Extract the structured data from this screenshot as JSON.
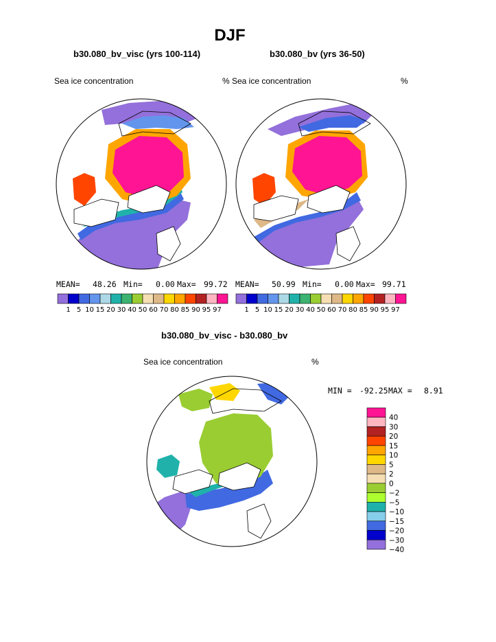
{
  "page": {
    "title": "DJF",
    "left_case": "b30.080_bv_visc (yrs 100-114)",
    "right_case": "b30.080_bv (yrs 36-50)",
    "diff_case": "b30.080_bv_visc - b30.080_bv"
  },
  "panels": [
    {
      "name": "b30.080_bv_visc (yrs 100-114)",
      "variable": "Sea ice concentration",
      "units": "%",
      "mean_label": "MEAN=",
      "mean": "48.26",
      "min_label": "Min=",
      "min": "0.00",
      "max_label": "Max=",
      "max": "99.72"
    },
    {
      "name": "b30.080_bv (yrs 36-50)",
      "variable": "Sea ice concentration",
      "units": "%",
      "mean_label": "MEAN=",
      "mean": "50.99",
      "min_label": "Min=",
      "min": "0.00",
      "max_label": "Max=",
      "max": "99.71"
    },
    {
      "name": "b30.080_bv_visc - b30.080_bv",
      "variable": "Sea ice concentration",
      "units": "%",
      "min_label": "MIN =",
      "min": "-92.25",
      "max_label": "MAX =",
      "max": "8.91"
    }
  ],
  "chart_data": [
    {
      "type": "heatmap",
      "title": "b30.080_bv_visc (yrs 100-114)",
      "projection": "north polar stereographic",
      "variable": "Sea ice concentration",
      "units": "%",
      "stats": {
        "mean": 48.26,
        "min": 0.0,
        "max": 99.72
      },
      "legend": {
        "orientation": "horizontal",
        "levels": [
          1,
          5,
          10,
          15,
          20,
          30,
          40,
          50,
          60,
          70,
          80,
          85,
          90,
          95,
          97
        ],
        "tick_labels": [
          "1",
          "5",
          "10",
          "15",
          "20",
          "30",
          "40",
          "50",
          "60",
          "70",
          "80",
          "85",
          "90",
          "95",
          "97"
        ],
        "colors": [
          "#9370db",
          "#0000cd",
          "#4169e1",
          "#6495ed",
          "#add8e6",
          "#20b2aa",
          "#3cb371",
          "#9acd32",
          "#f5deb3",
          "#deb887",
          "#ffd700",
          "#ffa500",
          "#ff4500",
          "#b22222",
          "#ffb6c1",
          "#ff1493"
        ]
      }
    },
    {
      "type": "heatmap",
      "title": "b30.080_bv (yrs 36-50)",
      "projection": "north polar stereographic",
      "variable": "Sea ice concentration",
      "units": "%",
      "stats": {
        "mean": 50.99,
        "min": 0.0,
        "max": 99.71
      },
      "legend": {
        "orientation": "horizontal",
        "levels": [
          1,
          5,
          10,
          15,
          20,
          30,
          40,
          50,
          60,
          70,
          80,
          85,
          90,
          95,
          97
        ],
        "tick_labels": [
          "1",
          "5",
          "10",
          "15",
          "20",
          "30",
          "40",
          "50",
          "60",
          "70",
          "80",
          "85",
          "90",
          "95",
          "97"
        ],
        "colors": [
          "#9370db",
          "#0000cd",
          "#4169e1",
          "#6495ed",
          "#add8e6",
          "#20b2aa",
          "#3cb371",
          "#9acd32",
          "#f5deb3",
          "#deb887",
          "#ffd700",
          "#ffa500",
          "#ff4500",
          "#b22222",
          "#ffb6c1",
          "#ff1493"
        ]
      }
    },
    {
      "type": "heatmap",
      "title": "b30.080_bv_visc - b30.080_bv",
      "projection": "north polar stereographic",
      "variable": "Sea ice concentration",
      "units": "%",
      "stats": {
        "min": -92.25,
        "max": 8.91
      },
      "legend": {
        "orientation": "vertical",
        "levels": [
          40,
          30,
          20,
          15,
          10,
          5,
          2,
          0,
          -2,
          -5,
          -10,
          -15,
          -20,
          -30,
          -40
        ],
        "tick_labels": [
          "40",
          "30",
          "20",
          "15",
          "10",
          "5",
          "2",
          "0",
          "−2",
          "−5",
          "−10",
          "−15",
          "−20",
          "−30",
          "−40"
        ],
        "colors": [
          "#ff1493",
          "#ffb6c1",
          "#b22222",
          "#ff4500",
          "#ffa500",
          "#ffd700",
          "#deb887",
          "#f5deb3",
          "#9acd32",
          "#adff2f",
          "#20b2aa",
          "#87ceeb",
          "#4169e1",
          "#0000cd",
          "#9370db"
        ]
      }
    }
  ]
}
